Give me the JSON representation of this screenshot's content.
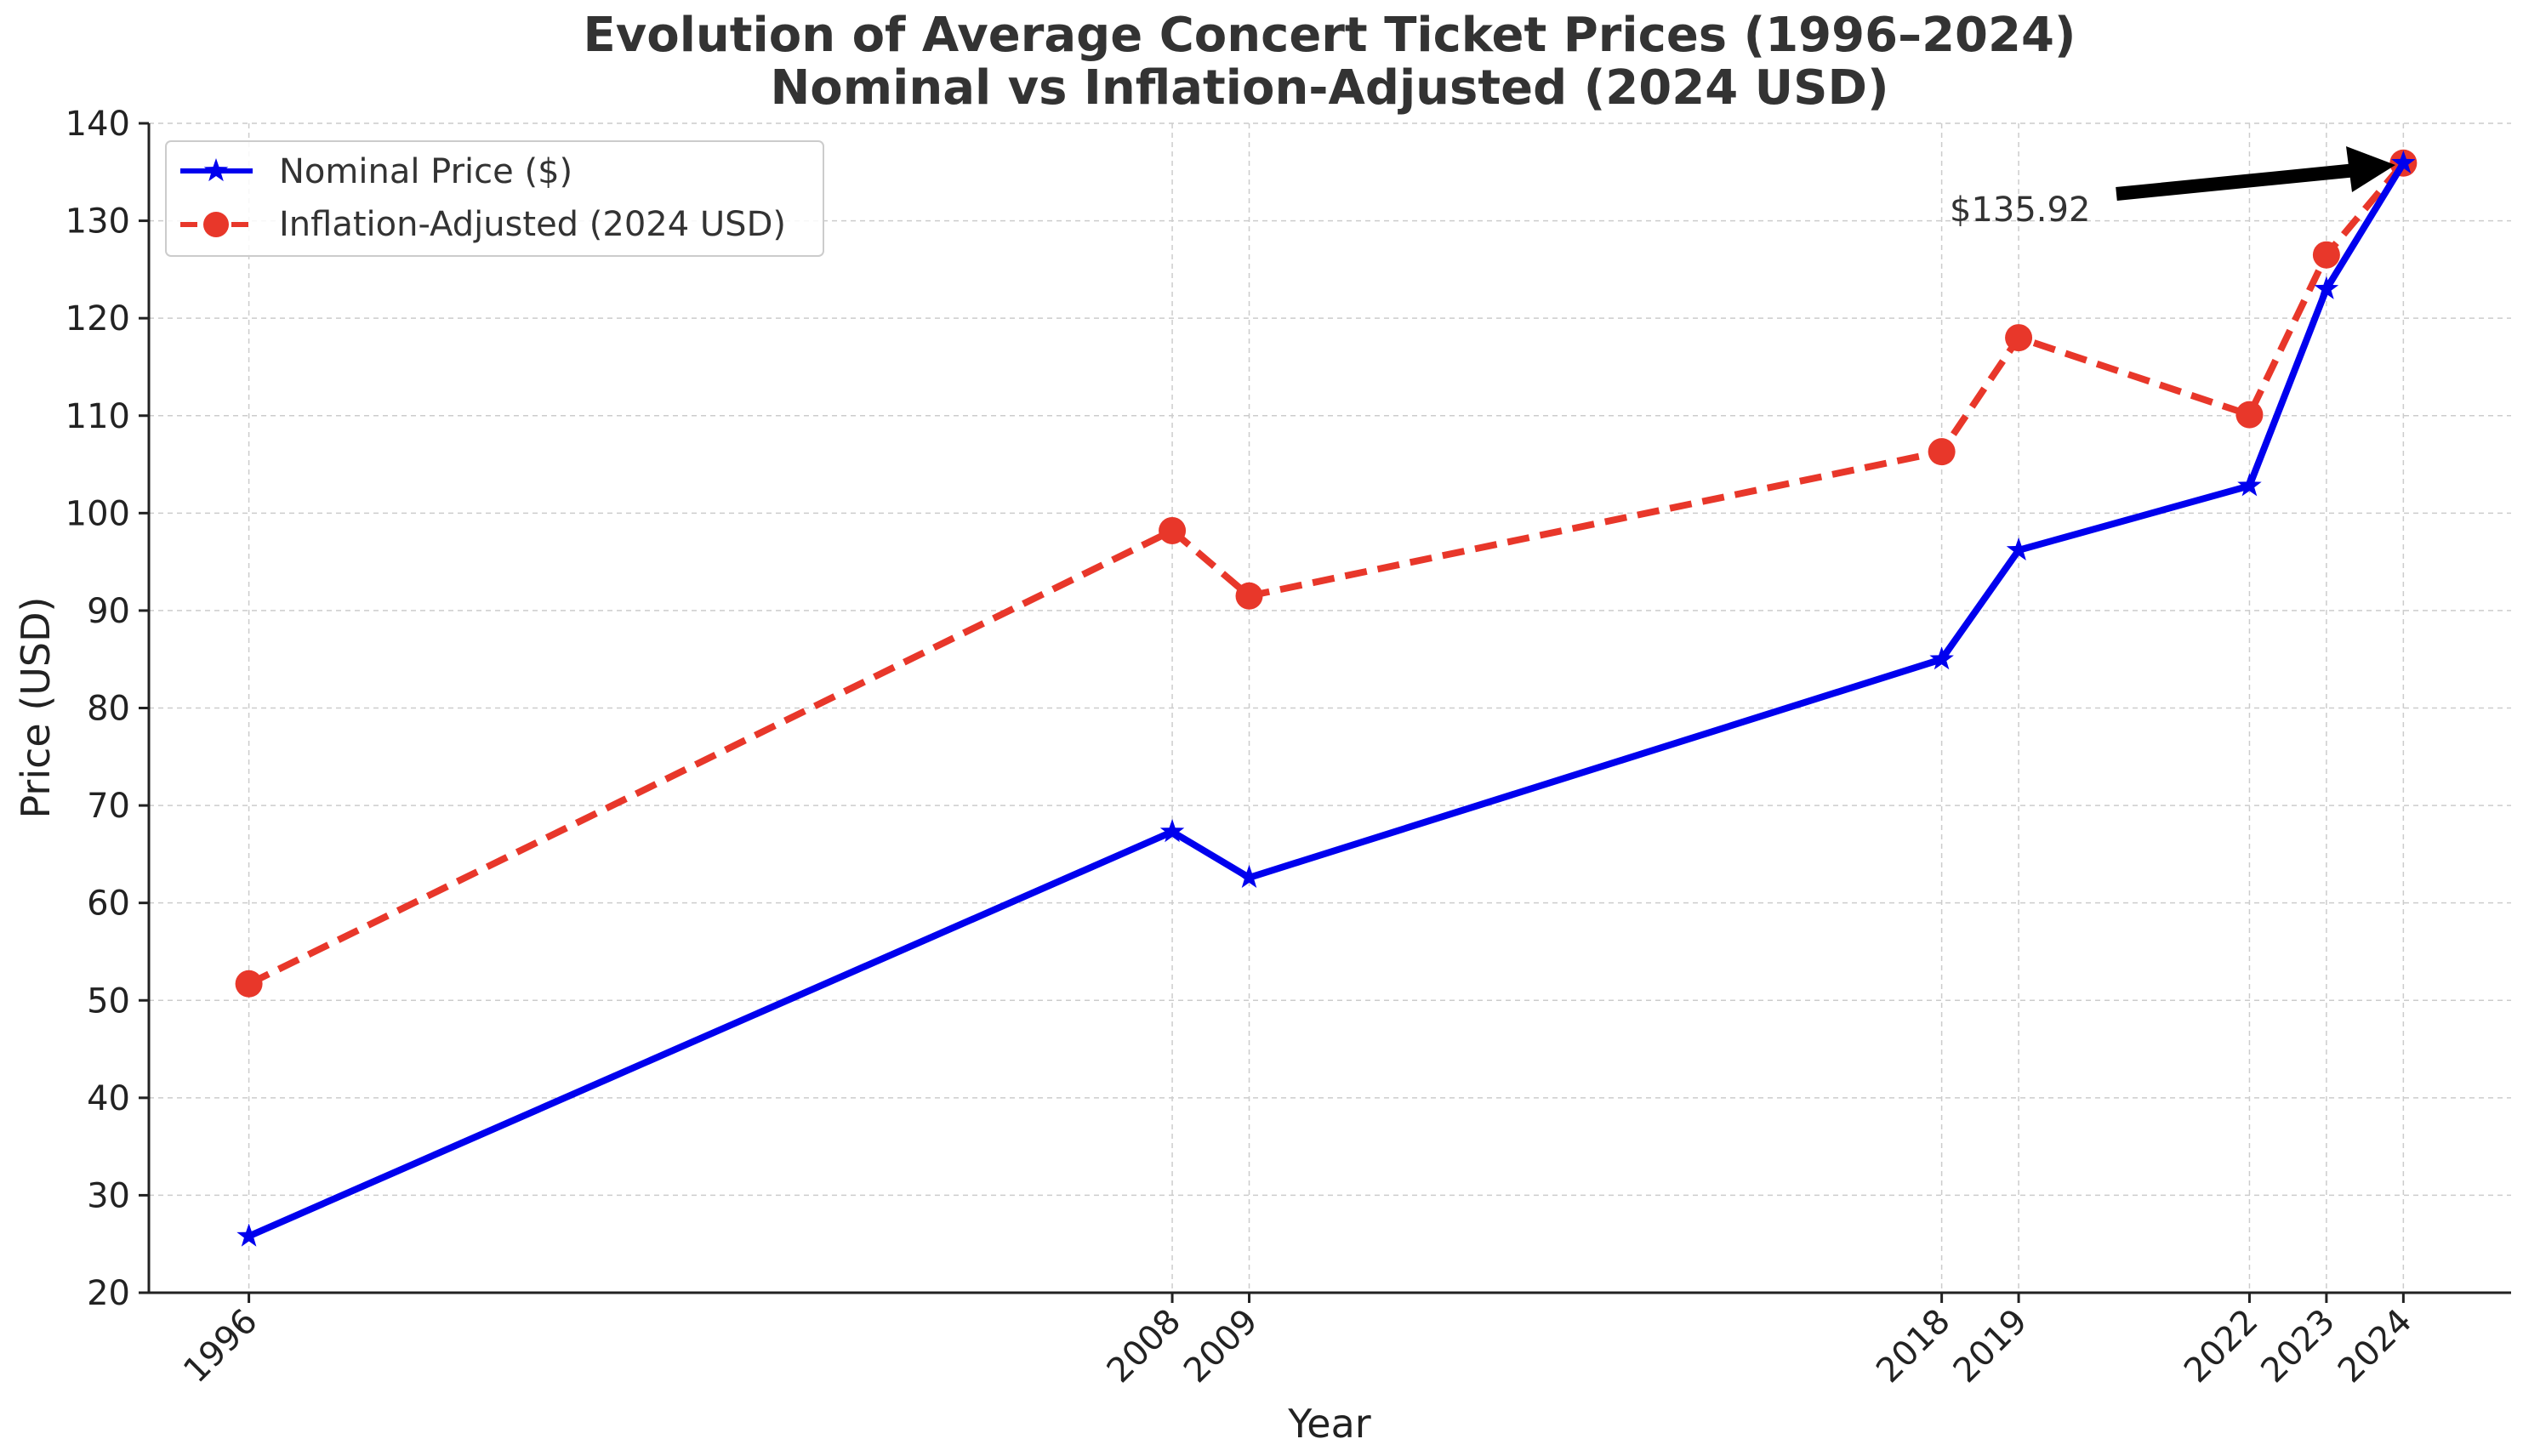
{
  "chart_data": {
    "type": "line",
    "title": "Evolution of Average Concert Ticket Prices (1996–2024)",
    "subtitle": "Nominal vs Inflation-Adjusted (2024 USD)",
    "xlabel": "Year",
    "ylabel": "Price (USD)",
    "x": [
      1996,
      2008,
      2009,
      2018,
      2019,
      2022,
      2023,
      2024
    ],
    "xticks": [
      "1996",
      "2008",
      "2009",
      "2018",
      "2019",
      "2022",
      "2023",
      "2024"
    ],
    "xlim": [
      1994.7,
      2025.4
    ],
    "ylim": [
      20,
      140
    ],
    "yticks": [
      20,
      30,
      40,
      50,
      60,
      70,
      80,
      90,
      100,
      110,
      120,
      130,
      140
    ],
    "grid": true,
    "legend_position": "upper-left",
    "series": [
      {
        "name": "Nominal Price ($)",
        "color": "#0000ee",
        "line_style": "solid",
        "marker": "star",
        "values": [
          25.8,
          67.3,
          62.6,
          85.0,
          96.2,
          102.8,
          123.0,
          135.92
        ]
      },
      {
        "name": "Inflation-Adjusted (2024 USD)",
        "color": "#e8372a",
        "line_style": "dashed",
        "marker": "circle",
        "values": [
          51.7,
          98.2,
          91.5,
          106.3,
          118.0,
          110.1,
          126.5,
          135.92
        ]
      }
    ],
    "annotation": {
      "text": "$135.92",
      "points_to_x": 2024,
      "points_to_y": 135.92,
      "arrow": "black"
    }
  }
}
